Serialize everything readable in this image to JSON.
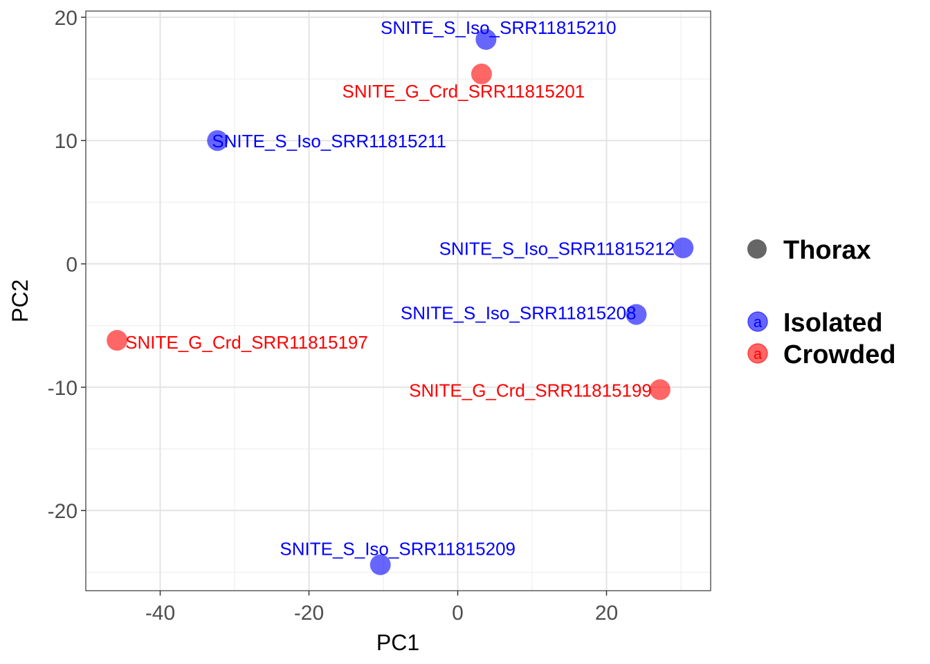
{
  "chart_data": {
    "type": "scatter",
    "title": "",
    "xlabel": "PC1",
    "ylabel": "PC2",
    "xlim": [
      -50,
      34
    ],
    "ylim": [
      -26.5,
      20.5
    ],
    "x_ticks": [
      -40,
      -20,
      0,
      20
    ],
    "x_tick_labels": [
      "-40",
      "-20",
      "0",
      "20"
    ],
    "y_ticks": [
      -20,
      -10,
      0,
      10,
      20
    ],
    "y_tick_labels": [
      "-20",
      "-10",
      "0",
      "10",
      "20"
    ],
    "grid": true,
    "legend_position": "right",
    "shape_legend": {
      "label": "Thorax",
      "color": "#666666"
    },
    "series": [
      {
        "name": "Isolated",
        "color": "#0000ff",
        "points": [
          {
            "label": "SNITE_S_Iso_SRR11815210",
            "x": 3.8,
            "y": 18.2
          },
          {
            "label": "SNITE_S_Iso_SRR11815211",
            "x": -32.3,
            "y": 10.0
          },
          {
            "label": "SNITE_S_Iso_SRR11815212",
            "x": 30.3,
            "y": 1.3
          },
          {
            "label": "SNITE_S_Iso_SRR11815208",
            "x": 24.0,
            "y": -4.1
          },
          {
            "label": "SNITE_S_Iso_SRR11815209",
            "x": -10.4,
            "y": -24.4
          }
        ]
      },
      {
        "name": "Crowded",
        "color": "#ff0000",
        "points": [
          {
            "label": "SNITE_G_Crd_SRR11815201",
            "x": 3.2,
            "y": 15.4
          },
          {
            "label": "SNITE_G_Crd_SRR11815197",
            "x": -45.8,
            "y": -6.2
          },
          {
            "label": "SNITE_G_Crd_SRR11815199",
            "x": 27.2,
            "y": -10.2
          }
        ]
      }
    ],
    "legend_key_glyph": "a"
  }
}
